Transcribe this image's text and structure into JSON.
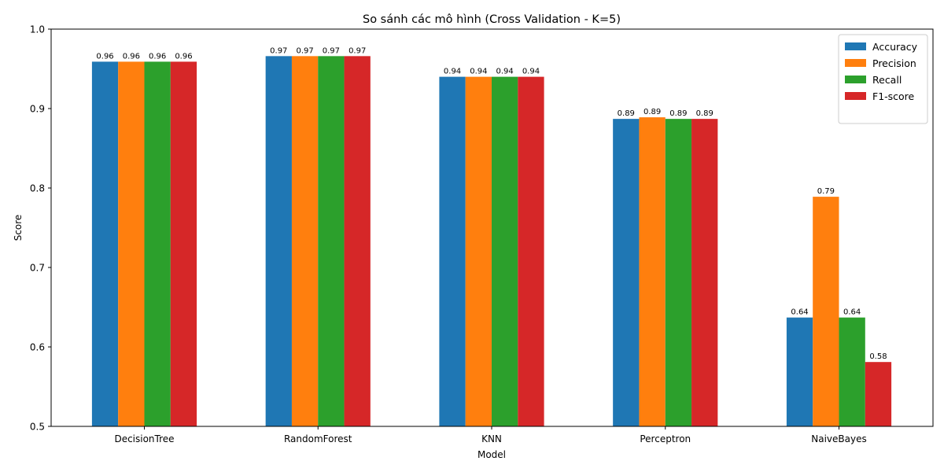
{
  "chart_data": {
    "type": "bar",
    "title": "So sánh các mô hình (Cross Validation - K=5)",
    "xlabel": "Model",
    "ylabel": "Score",
    "ylim": [
      0.5,
      1.0
    ],
    "yticks": [
      "0.5",
      "0.6",
      "0.7",
      "0.8",
      "0.9",
      "1.0"
    ],
    "categories": [
      "DecisionTree",
      "RandomForest",
      "KNN",
      "Perceptron",
      "NaiveBayes"
    ],
    "series": [
      {
        "name": "Accuracy",
        "color": "#1f77b4",
        "values": [
          0.959,
          0.966,
          0.94,
          0.887,
          0.637
        ],
        "labels": [
          "0.96",
          "0.97",
          "0.94",
          "0.89",
          "0.64"
        ]
      },
      {
        "name": "Precision",
        "color": "#ff7f0e",
        "values": [
          0.959,
          0.966,
          0.94,
          0.889,
          0.789
        ],
        "labels": [
          "0.96",
          "0.97",
          "0.94",
          "0.89",
          "0.79"
        ]
      },
      {
        "name": "Recall",
        "color": "#2ca02c",
        "values": [
          0.959,
          0.966,
          0.94,
          0.887,
          0.637
        ],
        "labels": [
          "0.96",
          "0.97",
          "0.94",
          "0.89",
          "0.64"
        ]
      },
      {
        "name": "F1-score",
        "color": "#d62728",
        "values": [
          0.959,
          0.966,
          0.94,
          0.887,
          0.581
        ],
        "labels": [
          "0.96",
          "0.97",
          "0.94",
          "0.89",
          "0.58"
        ]
      }
    ],
    "grid": false,
    "legend_position": "top-right"
  }
}
